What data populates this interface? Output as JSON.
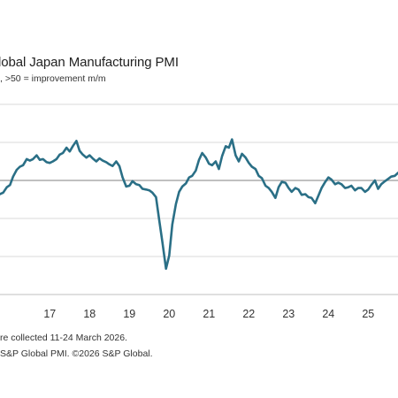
{
  "chart_data": {
    "type": "line",
    "title": "lobal Japan Manufacturing PMI",
    "subtitle": ", >50 = improvement m/m",
    "xlabel": "",
    "ylabel": "",
    "x_ticks": [
      "17",
      "18",
      "19",
      "20",
      "21",
      "22",
      "23",
      "24",
      "25"
    ],
    "xlim": [
      2016.25,
      2026.25
    ],
    "ylim": [
      35,
      60
    ],
    "reference_line": 50,
    "grid": true,
    "legend": "none",
    "series": [
      {
        "color": "#2a6f86",
        "x": [
          2016.25,
          2016.33,
          2016.42,
          2016.5,
          2016.58,
          2016.67,
          2016.75,
          2016.83,
          2016.92,
          2017.0,
          2017.08,
          2017.17,
          2017.25,
          2017.33,
          2017.42,
          2017.5,
          2017.58,
          2017.67,
          2017.75,
          2017.83,
          2017.92,
          2018.0,
          2018.08,
          2018.17,
          2018.25,
          2018.33,
          2018.42,
          2018.5,
          2018.58,
          2018.67,
          2018.75,
          2018.83,
          2018.92,
          2019.0,
          2019.08,
          2019.17,
          2019.25,
          2019.33,
          2019.42,
          2019.5,
          2019.58,
          2019.67,
          2019.75,
          2019.83,
          2019.92,
          2020.0,
          2020.08,
          2020.17,
          2020.25,
          2020.33,
          2020.42,
          2020.5,
          2020.58,
          2020.67,
          2020.75,
          2020.83,
          2020.92,
          2021.0,
          2021.08,
          2021.17,
          2021.25,
          2021.33,
          2021.42,
          2021.5,
          2021.58,
          2021.67,
          2021.75,
          2021.83,
          2021.92,
          2022.0,
          2022.08,
          2022.17,
          2022.25,
          2022.33,
          2022.42,
          2022.5,
          2022.58,
          2022.67,
          2022.75,
          2022.83,
          2022.92,
          2023.0,
          2023.08,
          2023.17,
          2023.25,
          2023.33,
          2023.42,
          2023.5,
          2023.58,
          2023.67,
          2023.75,
          2023.83,
          2023.92,
          2024.0,
          2024.08,
          2024.17,
          2024.25,
          2024.33,
          2024.42,
          2024.5,
          2024.58,
          2024.67,
          2024.75,
          2024.83,
          2024.92,
          2025.0,
          2025.08,
          2025.17,
          2025.25,
          2025.33,
          2025.42,
          2025.5,
          2025.58,
          2025.67,
          2025.75,
          2025.83,
          2025.92,
          2026.0,
          2026.08,
          2026.17,
          2026.25
        ],
        "values": [
          48.2,
          48.4,
          49.1,
          49.4,
          50.5,
          51.4,
          51.8,
          52.0,
          52.8,
          52.6,
          52.8,
          53.3,
          52.7,
          52.8,
          52.4,
          52.3,
          52.5,
          52.8,
          53.4,
          53.6,
          54.3,
          53.8,
          54.5,
          55.2,
          53.9,
          53.4,
          53.0,
          53.3,
          52.9,
          52.5,
          52.9,
          52.6,
          52.4,
          52.1,
          51.9,
          52.5,
          51.9,
          50.4,
          49.2,
          49.3,
          49.9,
          49.5,
          49.4,
          48.9,
          48.8,
          48.7,
          48.4,
          47.8,
          44.8,
          41.9,
          38.4,
          40.1,
          44.2,
          46.9,
          48.5,
          49.2,
          49.6,
          50.4,
          50.6,
          51.3,
          52.7,
          53.6,
          53.0,
          52.2,
          52.0,
          52.5,
          51.5,
          53.2,
          54.5,
          54.3,
          55.4,
          53.3,
          52.5,
          53.5,
          53.0,
          52.3,
          51.8,
          51.5,
          50.6,
          50.3,
          49.3,
          49.0,
          48.5,
          47.7,
          49.1,
          49.8,
          49.7,
          49.0,
          48.5,
          49.0,
          48.8,
          48.1,
          48.2,
          47.8,
          47.7,
          47.0,
          48.0,
          49.0,
          49.8,
          50.4,
          50.1,
          49.5,
          49.7,
          49.5,
          49.0,
          49.1,
          49.3,
          48.7,
          49.0,
          49.0,
          48.5,
          48.8,
          49.4,
          50.0,
          48.9,
          49.5,
          49.9,
          50.2,
          50.5,
          50.6,
          51.0
        ]
      }
    ]
  },
  "notes": {
    "line1": "re collected 11-24 March 2026.",
    "line2": "S&P Global PMI. ©2026 S&P Global."
  }
}
